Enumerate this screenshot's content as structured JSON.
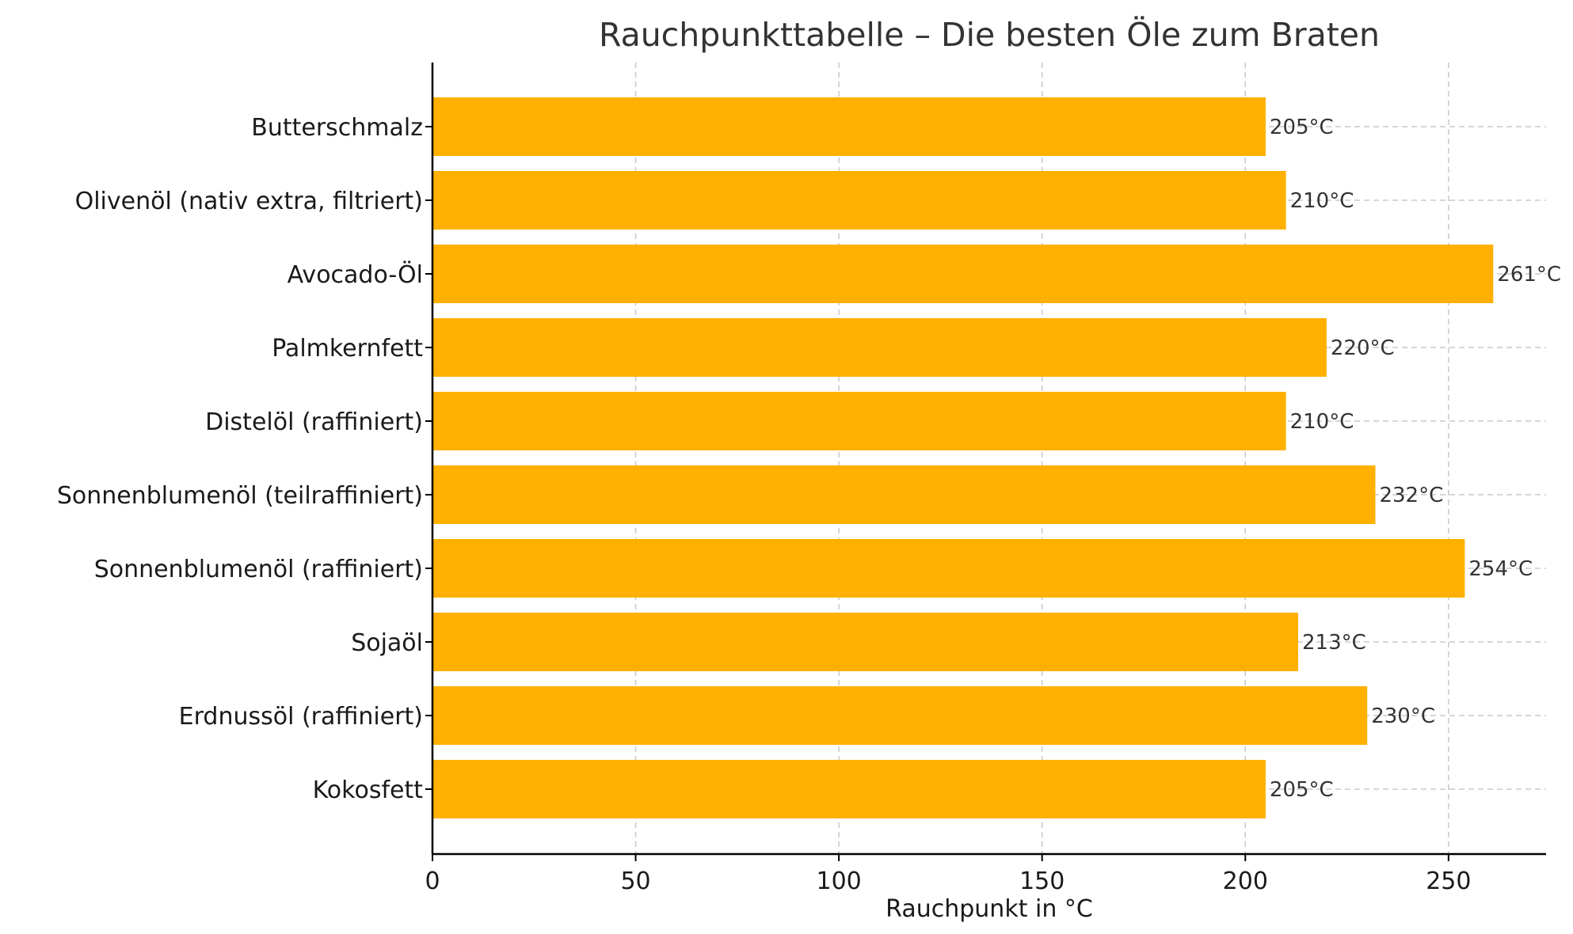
{
  "chart_data": {
    "type": "bar",
    "orientation": "horizontal",
    "title": "Rauchpunkttabelle – Die besten Öle zum Braten",
    "xlabel": "Rauchpunkt in °C",
    "ylabel": "",
    "xlim": [
      0,
      274
    ],
    "xticks": [
      0,
      50,
      100,
      150,
      200,
      250
    ],
    "categories": [
      "Butterschmalz",
      "Olivenöl (nativ extra, filtriert)",
      "Avocado-Öl",
      "Palmkernfett",
      "Distelöl (raffiniert)",
      "Sonnenblumenöl (teilraffiniert)",
      "Sonnenblumenöl (raffiniert)",
      "Sojaöl",
      "Erdnussöl (raffiniert)",
      "Kokosfett"
    ],
    "values": [
      205,
      210,
      261,
      220,
      210,
      232,
      254,
      213,
      230,
      205
    ],
    "value_labels": [
      "205°C",
      "210°C",
      "261°C",
      "220°C",
      "210°C",
      "232°C",
      "254°C",
      "213°C",
      "230°C",
      "205°C"
    ],
    "bar_color": "#FFB000",
    "grid": true,
    "grid_style": "dashed"
  }
}
